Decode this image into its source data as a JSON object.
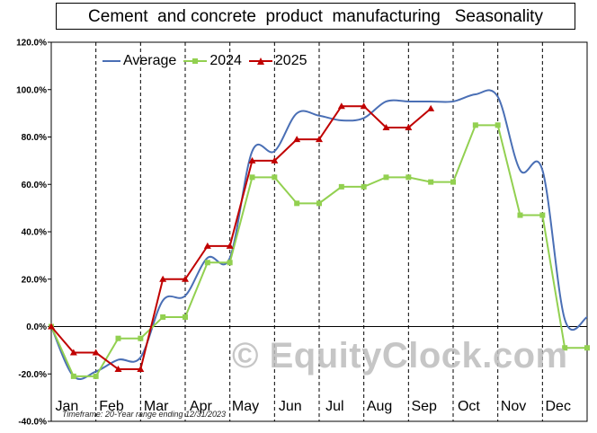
{
  "title": "Cement  and concrete  product  manufacturing   Seasonality",
  "footnote": "Timeframe: 20-Year range ending 12/31/2023",
  "watermark": "© EquityClock.com",
  "colors": {
    "average": "#4a6fb5",
    "y2024": "#92d050",
    "y2025": "#c00000",
    "grid": "#000000",
    "zero": "#000000"
  },
  "chart_data": {
    "type": "line",
    "title": "Cement  and concrete  product  manufacturing   Seasonality",
    "xlabel": "",
    "ylabel": "",
    "categories": [
      "Jan",
      "Feb",
      "Mar",
      "Apr",
      "May",
      "Jun",
      "Jul",
      "Aug",
      "Sep",
      "Oct",
      "Nov",
      "Dec"
    ],
    "yticks": [
      "120.0%",
      "100.0%",
      "80.0%",
      "60.0%",
      "40.0%",
      "20.0%",
      "0.0%",
      "-20.0%",
      "-40.0%"
    ],
    "ylim": [
      -40,
      120
    ],
    "grid": "vertical dashed month dividers",
    "legend_position": "top-left",
    "series": [
      {
        "name": "Average",
        "style": "smooth",
        "x": [
          0,
          0.5,
          1.0,
          1.5,
          2.0,
          2.5,
          3.0,
          3.5,
          4.0,
          4.5,
          5.0,
          5.5,
          6.0,
          6.5,
          7.0,
          7.5,
          8.0,
          8.5,
          9.0,
          9.5,
          10.0,
          10.5,
          11.0,
          11.5,
          12.0
        ],
        "values": [
          0,
          -21,
          -19,
          -14,
          -13,
          11,
          13,
          29,
          29,
          74,
          74,
          90,
          89,
          87,
          88,
          95,
          95,
          95,
          95,
          98,
          97,
          66,
          66,
          3,
          4
        ]
      },
      {
        "name": "2024",
        "style": "steps",
        "x": [
          0,
          0.5,
          1.0,
          1.5,
          2.0,
          2.5,
          3.0,
          3.5,
          4.0,
          4.5,
          5.0,
          5.5,
          6.0,
          6.5,
          7.0,
          7.5,
          8.0,
          8.5,
          9.0,
          9.5,
          10.0,
          10.5,
          11.0,
          11.5,
          12.0
        ],
        "values": [
          0,
          -21,
          -21,
          -5,
          -5,
          4,
          4,
          27,
          27,
          63,
          63,
          52,
          52,
          59,
          59,
          63,
          63,
          61,
          61,
          85,
          85,
          47,
          47,
          -9,
          -9
        ]
      },
      {
        "name": "2025",
        "style": "steps",
        "x": [
          0,
          0.5,
          1.0,
          1.5,
          2.0,
          2.5,
          3.0,
          3.5,
          4.0,
          4.5,
          5.0,
          5.5,
          6.0,
          6.5,
          7.0,
          7.5,
          8.0,
          8.5
        ],
        "values": [
          0,
          -11,
          -11,
          -18,
          -18,
          20,
          20,
          34,
          34,
          70,
          70,
          79,
          79,
          93,
          93,
          84,
          84,
          92
        ]
      }
    ]
  }
}
